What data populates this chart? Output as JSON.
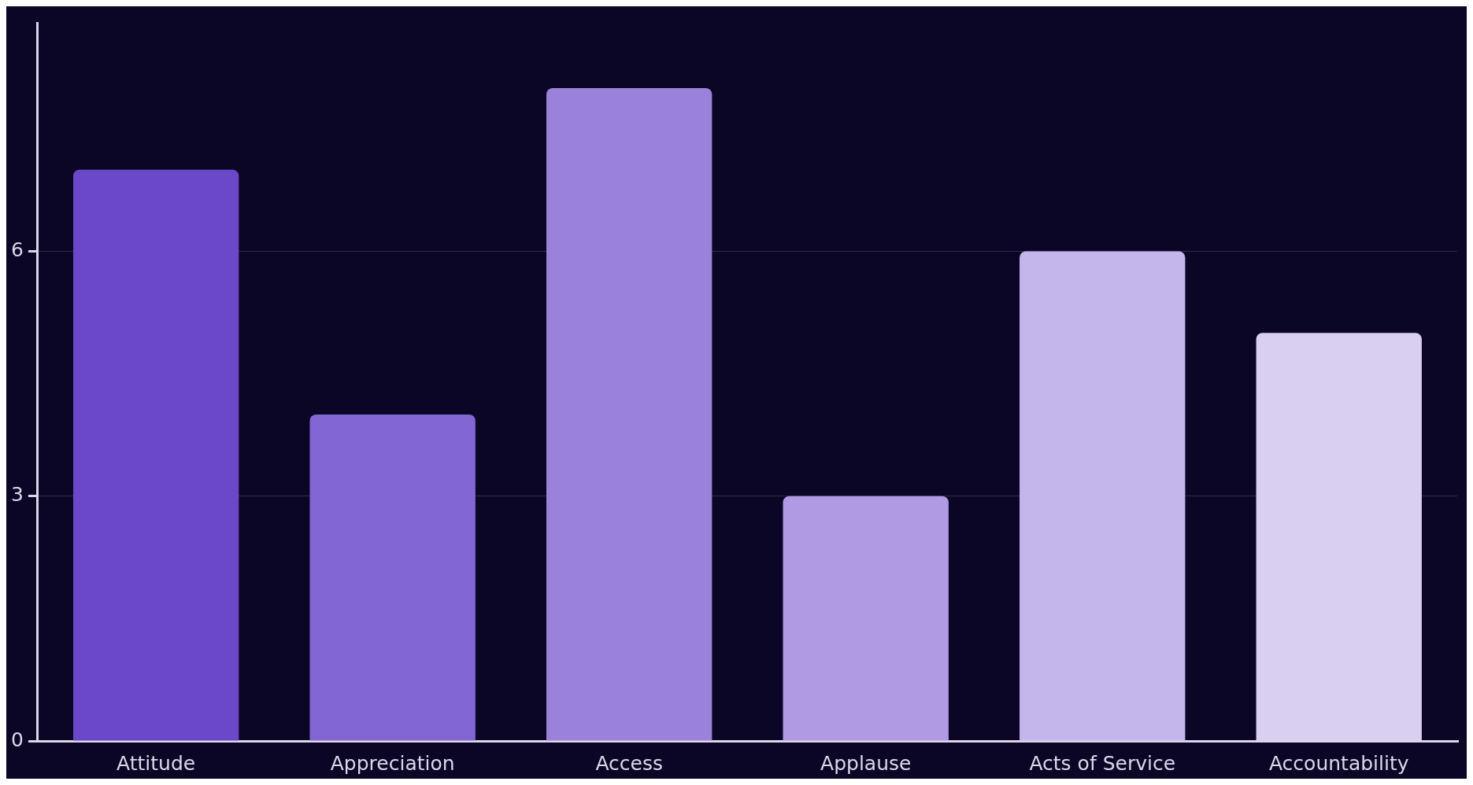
{
  "chart_data": {
    "type": "bar",
    "categories": [
      "Attitude",
      "Appreciation",
      "Access",
      "Applause",
      "Acts of Service",
      "Accountability"
    ],
    "values": [
      7,
      4,
      8,
      3,
      6,
      5
    ],
    "colors": [
      "#6b48c8",
      "#8266d4",
      "#9a82da",
      "#b09ae3",
      "#c4b5ea",
      "#d9cff0"
    ],
    "ylim": [
      0,
      8.8
    ],
    "yticks": [
      0,
      3,
      6
    ],
    "grid": "y",
    "legend": false
  }
}
